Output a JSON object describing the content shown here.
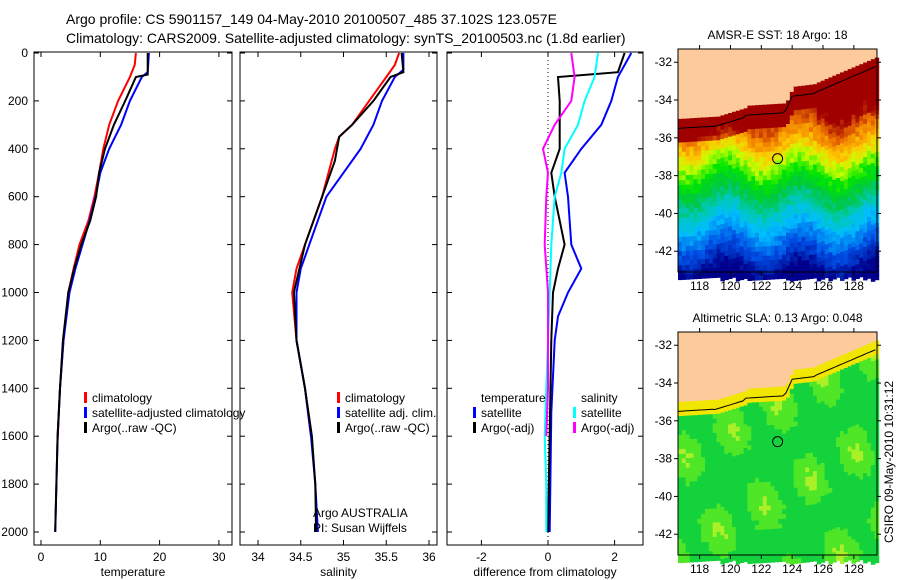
{
  "title_line1": "Argo profile: CS 5901157_149 04-May-2010 20100507_485 37.102S 123.057E",
  "title_line2": "Climatology: CARS2009. Satellite-adjusted climatology: synTS_20100503.nc (1.8d earlier)",
  "footer_stamp": "CSIRO 09-May-2010 10:31:12",
  "colors": {
    "climatology": "#ff0000",
    "satellite": "#0000ff",
    "argo": "#000000",
    "sal_satellite": "#00ffff",
    "sal_argo": "#ff00ff",
    "land": "#fdcb9b"
  },
  "chart_data": [
    {
      "type": "line",
      "id": "temperature",
      "xlabel": "temperature",
      "ylabel": "",
      "xlim": [
        -2,
        32
      ],
      "ylim": [
        2050,
        0
      ],
      "xticks": [
        "0",
        "10",
        "20",
        "30"
      ],
      "yticks": [
        "0",
        "200",
        "400",
        "600",
        "800",
        "1000",
        "1200",
        "1400",
        "1600",
        "1800",
        "2000"
      ],
      "legend": [
        "climatology",
        "satellite-adjusted climatology",
        "Argo(..raw -QC)"
      ],
      "series": [
        {
          "name": "climatology",
          "color": "#ff0000",
          "depth": [
            0,
            50,
            100,
            200,
            300,
            400,
            500,
            600,
            700,
            800,
            900,
            1000,
            1200,
            1400,
            1620
          ],
          "values": [
            16,
            15.8,
            15,
            13,
            11.5,
            10.5,
            9.8,
            9,
            8,
            6.5,
            5.5,
            4.6,
            3.8,
            3.2,
            2.8
          ]
        },
        {
          "name": "satellite-adjusted climatology",
          "color": "#0000ff",
          "depth": [
            0,
            80,
            100,
            200,
            300,
            400,
            500,
            600,
            700,
            800,
            900,
            1000,
            1200,
            1400,
            1600,
            1800,
            2000
          ],
          "values": [
            18.2,
            18,
            17,
            15,
            13.5,
            11.5,
            10,
            9.2,
            8.2,
            7,
            5.8,
            4.8,
            3.8,
            3.2,
            2.8,
            2.6,
            2.4
          ]
        },
        {
          "name": "Argo(..raw -QC)",
          "color": "#000000",
          "depth": [
            0,
            90,
            100,
            200,
            300,
            400,
            500,
            600,
            700,
            800,
            900,
            1000,
            1200,
            1400,
            1600,
            1800,
            2000
          ],
          "values": [
            18,
            18,
            16,
            14.2,
            12.3,
            10.8,
            9.8,
            9.3,
            8.3,
            6.8,
            5.6,
            4.6,
            3.7,
            3.2,
            2.8,
            2.6,
            2.4
          ]
        }
      ]
    },
    {
      "type": "line",
      "id": "salinity",
      "xlabel": "salinity",
      "xlim": [
        33.8,
        36.1
      ],
      "ylim": [
        2050,
        0
      ],
      "xticks": [
        "34",
        "34.5",
        "35",
        "35.5",
        "36"
      ],
      "legend": [
        "climatology",
        "satellite adj. clim.",
        "Argo(..raw -QC)"
      ],
      "annotation": [
        "Argo AUSTRALIA",
        "PI: Susan Wijffels"
      ],
      "series": [
        {
          "name": "climatology",
          "color": "#ff0000",
          "depth": [
            0,
            50,
            100,
            200,
            300,
            350,
            400,
            600,
            800,
            900,
            1000,
            1200,
            1400,
            1600
          ],
          "values": [
            35.65,
            35.6,
            35.5,
            35.3,
            35.1,
            34.95,
            34.9,
            34.75,
            34.55,
            34.45,
            34.4,
            34.45,
            34.55,
            34.62
          ]
        },
        {
          "name": "satellite adj. clim.",
          "color": "#0000ff",
          "depth": [
            0,
            70,
            100,
            200,
            300,
            400,
            500,
            600,
            800,
            900,
            1000,
            1200,
            1400,
            1600,
            1800,
            2000
          ],
          "values": [
            35.7,
            35.7,
            35.6,
            35.45,
            35.35,
            35.2,
            35.0,
            34.8,
            34.6,
            34.5,
            34.45,
            34.45,
            34.55,
            34.62,
            34.67,
            34.7
          ]
        },
        {
          "name": "Argo(..raw -QC)",
          "color": "#000000",
          "depth": [
            0,
            80,
            100,
            200,
            300,
            350,
            450,
            600,
            800,
            1000,
            1200,
            1400,
            1600,
            1800,
            2000
          ],
          "values": [
            35.68,
            35.7,
            35.55,
            35.35,
            35.1,
            34.95,
            34.9,
            34.75,
            34.55,
            34.42,
            34.45,
            34.55,
            34.63,
            34.67,
            34.68
          ]
        }
      ]
    },
    {
      "type": "line",
      "id": "difference",
      "xlabel": "difference from climatology",
      "xlim": [
        -3,
        3
      ],
      "ylim": [
        2050,
        0
      ],
      "xticks": [
        "-2",
        "0",
        "2"
      ],
      "legend_titles": [
        "temperature",
        "salinity"
      ],
      "legend": [
        "satellite",
        "Argo(-adj)",
        "satellite",
        "Argo(-adj)"
      ],
      "series": [
        {
          "name": "temperature satellite",
          "color": "#0000ff",
          "depth": [
            0,
            100,
            200,
            300,
            400,
            500,
            600,
            800,
            900,
            1000,
            1100,
            1200,
            1500,
            2000
          ],
          "values": [
            2.5,
            2.1,
            1.9,
            1.6,
            1.0,
            0.5,
            0.6,
            0.7,
            1.0,
            0.6,
            0.3,
            0.2,
            0.1,
            0.05
          ]
        },
        {
          "name": "temperature Argo(-adj)",
          "color": "#000000",
          "depth": [
            0,
            80,
            100,
            200,
            400,
            500,
            600,
            700,
            800,
            900,
            1000,
            1200,
            2000
          ],
          "values": [
            2.3,
            2.1,
            0.3,
            0.35,
            0.35,
            0.1,
            0.2,
            0.35,
            0.5,
            0.3,
            0.15,
            0.1,
            0.0
          ]
        },
        {
          "name": "salinity satellite",
          "color": "#00ffff",
          "depth": [
            0,
            100,
            200,
            300,
            400,
            500,
            600,
            800,
            1000,
            1400,
            1600,
            1800,
            2000
          ],
          "values": [
            1.5,
            1.4,
            1.1,
            0.9,
            0.5,
            0.4,
            0.2,
            0.1,
            0.05,
            -0.05,
            -0.1,
            -0.05,
            -0.05
          ]
        },
        {
          "name": "salinity Argo(-adj)",
          "color": "#ff00ff",
          "depth": [
            0,
            100,
            200,
            300,
            400,
            500,
            600,
            800,
            1000,
            1400,
            1600
          ],
          "values": [
            0.7,
            0.8,
            0.7,
            0.2,
            -0.15,
            0.0,
            -0.05,
            -0.1,
            0.0,
            0.0,
            -0.05
          ]
        }
      ]
    },
    {
      "type": "heatmap",
      "id": "sst_map",
      "title": "AMSR-E SST: 18 Argo: 18",
      "xlim": [
        116.6,
        129.5
      ],
      "ylim": [
        -43.1,
        -31.3
      ],
      "xticks": [
        "118",
        "120",
        "122",
        "124",
        "126",
        "128"
      ],
      "yticks": [
        "-32",
        "-34",
        "-36",
        "-38",
        "-40",
        "-42"
      ],
      "marker": {
        "lon": 123.057,
        "lat": -37.102
      }
    },
    {
      "type": "heatmap",
      "id": "sla_map",
      "title": "Altimetric SLA: 0.13 Argo: 0.048",
      "xlim": [
        116.6,
        129.5
      ],
      "ylim": [
        -43.1,
        -31.3
      ],
      "xticks": [
        "118",
        "120",
        "122",
        "124",
        "126",
        "128"
      ],
      "yticks": [
        "-32",
        "-34",
        "-36",
        "-38",
        "-40",
        "-42"
      ],
      "marker": {
        "lon": 123.057,
        "lat": -37.102
      }
    }
  ]
}
